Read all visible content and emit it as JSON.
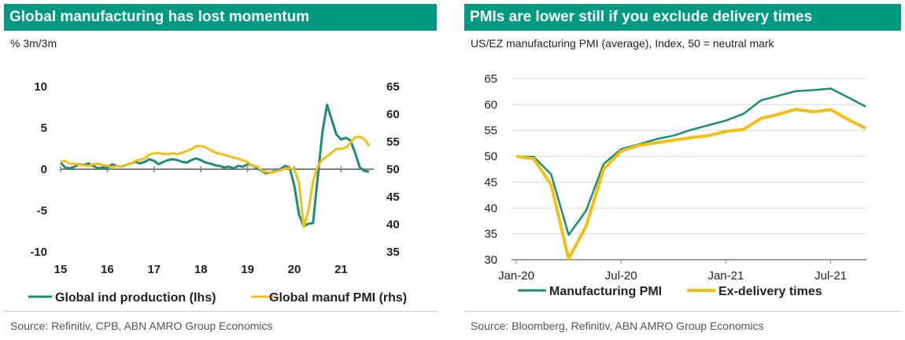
{
  "chart_data": [
    {
      "type": "line",
      "title": "Global manufacturing has lost momentum",
      "subtitle": "% 3m/3m",
      "source": "Source: Refinitiv, CPB, ABN AMRO Group Economics",
      "x_ticks": [
        "15",
        "16",
        "17",
        "18",
        "19",
        "20",
        "21"
      ],
      "ylim_left": [
        -10,
        10
      ],
      "yticks_left": [
        "10",
        "5",
        "0",
        "-5",
        "-10"
      ],
      "ylim_right": [
        35,
        65
      ],
      "yticks_right": [
        "65",
        "60",
        "55",
        "50",
        "45",
        "40",
        "35"
      ],
      "series": [
        {
          "name": "Global ind production (lhs)",
          "axis": "left",
          "color": "#1a8c7a",
          "points": [
            [
              2015.0,
              0.8
            ],
            [
              2015.1,
              0.2
            ],
            [
              2015.2,
              0.1
            ],
            [
              2015.3,
              0.3
            ],
            [
              2015.4,
              0.6
            ],
            [
              2015.5,
              0.5
            ],
            [
              2015.6,
              0.7
            ],
            [
              2015.7,
              0.4
            ],
            [
              2015.8,
              0.1
            ],
            [
              2015.9,
              0.2
            ],
            [
              2016.0,
              0.1
            ],
            [
              2016.1,
              0.6
            ],
            [
              2016.2,
              0.4
            ],
            [
              2016.3,
              0.3
            ],
            [
              2016.4,
              0.5
            ],
            [
              2016.5,
              0.7
            ],
            [
              2016.6,
              0.9
            ],
            [
              2016.7,
              0.7
            ],
            [
              2016.8,
              0.9
            ],
            [
              2016.9,
              1.2
            ],
            [
              2017.0,
              1.0
            ],
            [
              2017.1,
              0.6
            ],
            [
              2017.2,
              0.9
            ],
            [
              2017.3,
              1.1
            ],
            [
              2017.4,
              1.2
            ],
            [
              2017.5,
              1.1
            ],
            [
              2017.6,
              0.9
            ],
            [
              2017.7,
              0.8
            ],
            [
              2017.8,
              1.1
            ],
            [
              2017.9,
              1.3
            ],
            [
              2018.0,
              1.1
            ],
            [
              2018.1,
              0.8
            ],
            [
              2018.2,
              0.7
            ],
            [
              2018.3,
              0.5
            ],
            [
              2018.4,
              0.4
            ],
            [
              2018.5,
              0.2
            ],
            [
              2018.6,
              0.3
            ],
            [
              2018.7,
              0.1
            ],
            [
              2018.8,
              0.4
            ],
            [
              2018.9,
              0.3
            ],
            [
              2019.0,
              0.6
            ],
            [
              2019.1,
              0.5
            ],
            [
              2019.2,
              0.1
            ],
            [
              2019.3,
              -0.2
            ],
            [
              2019.4,
              -0.5
            ],
            [
              2019.5,
              -0.4
            ],
            [
              2019.6,
              -0.2
            ],
            [
              2019.7,
              0.0
            ],
            [
              2019.8,
              0.4
            ],
            [
              2019.9,
              0.2
            ],
            [
              2020.0,
              -2.0
            ],
            [
              2020.1,
              -5.5
            ],
            [
              2020.2,
              -6.9
            ],
            [
              2020.3,
              -6.6
            ],
            [
              2020.4,
              -6.5
            ],
            [
              2020.5,
              -1.0
            ],
            [
              2020.6,
              4.5
            ],
            [
              2020.7,
              7.8
            ],
            [
              2020.8,
              6.0
            ],
            [
              2020.9,
              4.2
            ],
            [
              2021.0,
              3.6
            ],
            [
              2021.1,
              3.8
            ],
            [
              2021.2,
              3.5
            ],
            [
              2021.3,
              2.0
            ],
            [
              2021.4,
              0.2
            ],
            [
              2021.5,
              -0.2
            ],
            [
              2021.6,
              -0.3
            ]
          ]
        },
        {
          "name": "Global manuf PMI (rhs)",
          "axis": "right",
          "color": "#f2bf15",
          "points": [
            [
              2015.0,
              51.3
            ],
            [
              2015.1,
              51.5
            ],
            [
              2015.2,
              51.0
            ],
            [
              2015.3,
              51.0
            ],
            [
              2015.4,
              50.8
            ],
            [
              2015.5,
              50.7
            ],
            [
              2015.6,
              50.6
            ],
            [
              2015.7,
              50.9
            ],
            [
              2015.8,
              51.0
            ],
            [
              2015.9,
              50.7
            ],
            [
              2016.0,
              50.7
            ],
            [
              2016.1,
              50.2
            ],
            [
              2016.2,
              50.6
            ],
            [
              2016.3,
              50.5
            ],
            [
              2016.4,
              50.8
            ],
            [
              2016.5,
              51.0
            ],
            [
              2016.6,
              51.5
            ],
            [
              2016.7,
              51.7
            ],
            [
              2016.8,
              52.0
            ],
            [
              2016.9,
              52.7
            ],
            [
              2017.0,
              52.9
            ],
            [
              2017.1,
              52.9
            ],
            [
              2017.2,
              52.8
            ],
            [
              2017.3,
              52.7
            ],
            [
              2017.4,
              52.9
            ],
            [
              2017.5,
              52.7
            ],
            [
              2017.6,
              53.0
            ],
            [
              2017.7,
              53.3
            ],
            [
              2017.8,
              53.6
            ],
            [
              2017.9,
              54.2
            ],
            [
              2018.0,
              54.2
            ],
            [
              2018.1,
              54.0
            ],
            [
              2018.2,
              53.5
            ],
            [
              2018.3,
              53.1
            ],
            [
              2018.4,
              52.8
            ],
            [
              2018.5,
              52.6
            ],
            [
              2018.6,
              52.4
            ],
            [
              2018.7,
              52.1
            ],
            [
              2018.8,
              51.9
            ],
            [
              2018.9,
              51.6
            ],
            [
              2019.0,
              51.3
            ],
            [
              2019.1,
              50.6
            ],
            [
              2019.2,
              50.5
            ],
            [
              2019.3,
              49.8
            ],
            [
              2019.4,
              49.5
            ],
            [
              2019.5,
              49.3
            ],
            [
              2019.6,
              49.6
            ],
            [
              2019.7,
              49.8
            ],
            [
              2019.8,
              50.1
            ],
            [
              2019.9,
              50.2
            ],
            [
              2020.0,
              49.9
            ],
            [
              2020.1,
              47.5
            ],
            [
              2020.2,
              39.5
            ],
            [
              2020.3,
              42.4
            ],
            [
              2020.4,
              47.8
            ],
            [
              2020.5,
              50.5
            ],
            [
              2020.6,
              51.8
            ],
            [
              2020.7,
              52.3
            ],
            [
              2020.8,
              53.0
            ],
            [
              2020.9,
              53.7
            ],
            [
              2021.0,
              53.7
            ],
            [
              2021.1,
              53.9
            ],
            [
              2021.2,
              54.8
            ],
            [
              2021.3,
              55.8
            ],
            [
              2021.4,
              55.9
            ],
            [
              2021.5,
              55.5
            ],
            [
              2021.6,
              54.2
            ]
          ]
        }
      ]
    },
    {
      "type": "line",
      "title": "PMIs are lower still if you exclude delivery times",
      "subtitle": "US/EZ manufacturing PMI (average), Index, 50 = neutral mark",
      "source": "Source: Bloomberg, Refinitiv, ABN AMRO Group Economics",
      "x_ticks": [
        "Jan-20",
        "Jul-20",
        "Jan-21",
        "Jul-21"
      ],
      "ylim": [
        30,
        65
      ],
      "yticks": [
        "65",
        "60",
        "55",
        "50",
        "45",
        "40",
        "35",
        "30"
      ],
      "series": [
        {
          "name": "Manufacturing PMI",
          "color": "#1a8c7a",
          "points": [
            [
              0,
              50.0
            ],
            [
              1,
              49.9
            ],
            [
              2,
              46.5
            ],
            [
              3,
              34.8
            ],
            [
              4,
              39.5
            ],
            [
              5,
              48.5
            ],
            [
              6,
              51.4
            ],
            [
              7,
              52.3
            ],
            [
              8,
              53.3
            ],
            [
              9,
              54.0
            ],
            [
              10,
              55.1
            ],
            [
              11,
              56.0
            ],
            [
              12,
              56.9
            ],
            [
              13,
              58.2
            ],
            [
              14,
              60.8
            ],
            [
              15,
              61.7
            ],
            [
              16,
              62.6
            ],
            [
              17,
              62.8
            ],
            [
              18,
              63.1
            ],
            [
              19,
              61.4
            ],
            [
              20,
              59.6
            ]
          ]
        },
        {
          "name": "Ex-delivery times",
          "color": "#f2bf15",
          "points": [
            [
              0,
              50.0
            ],
            [
              1,
              49.5
            ],
            [
              2,
              44.5
            ],
            [
              3,
              30.2
            ],
            [
              4,
              36.5
            ],
            [
              5,
              47.5
            ],
            [
              6,
              51.0
            ],
            [
              7,
              52.1
            ],
            [
              8,
              52.6
            ],
            [
              9,
              53.1
            ],
            [
              10,
              53.6
            ],
            [
              11,
              54.0
            ],
            [
              12,
              54.8
            ],
            [
              13,
              55.2
            ],
            [
              14,
              57.3
            ],
            [
              15,
              58.1
            ],
            [
              16,
              59.1
            ],
            [
              17,
              58.6
            ],
            [
              18,
              59.0
            ],
            [
              19,
              57.1
            ],
            [
              20,
              55.4
            ]
          ]
        }
      ]
    }
  ]
}
